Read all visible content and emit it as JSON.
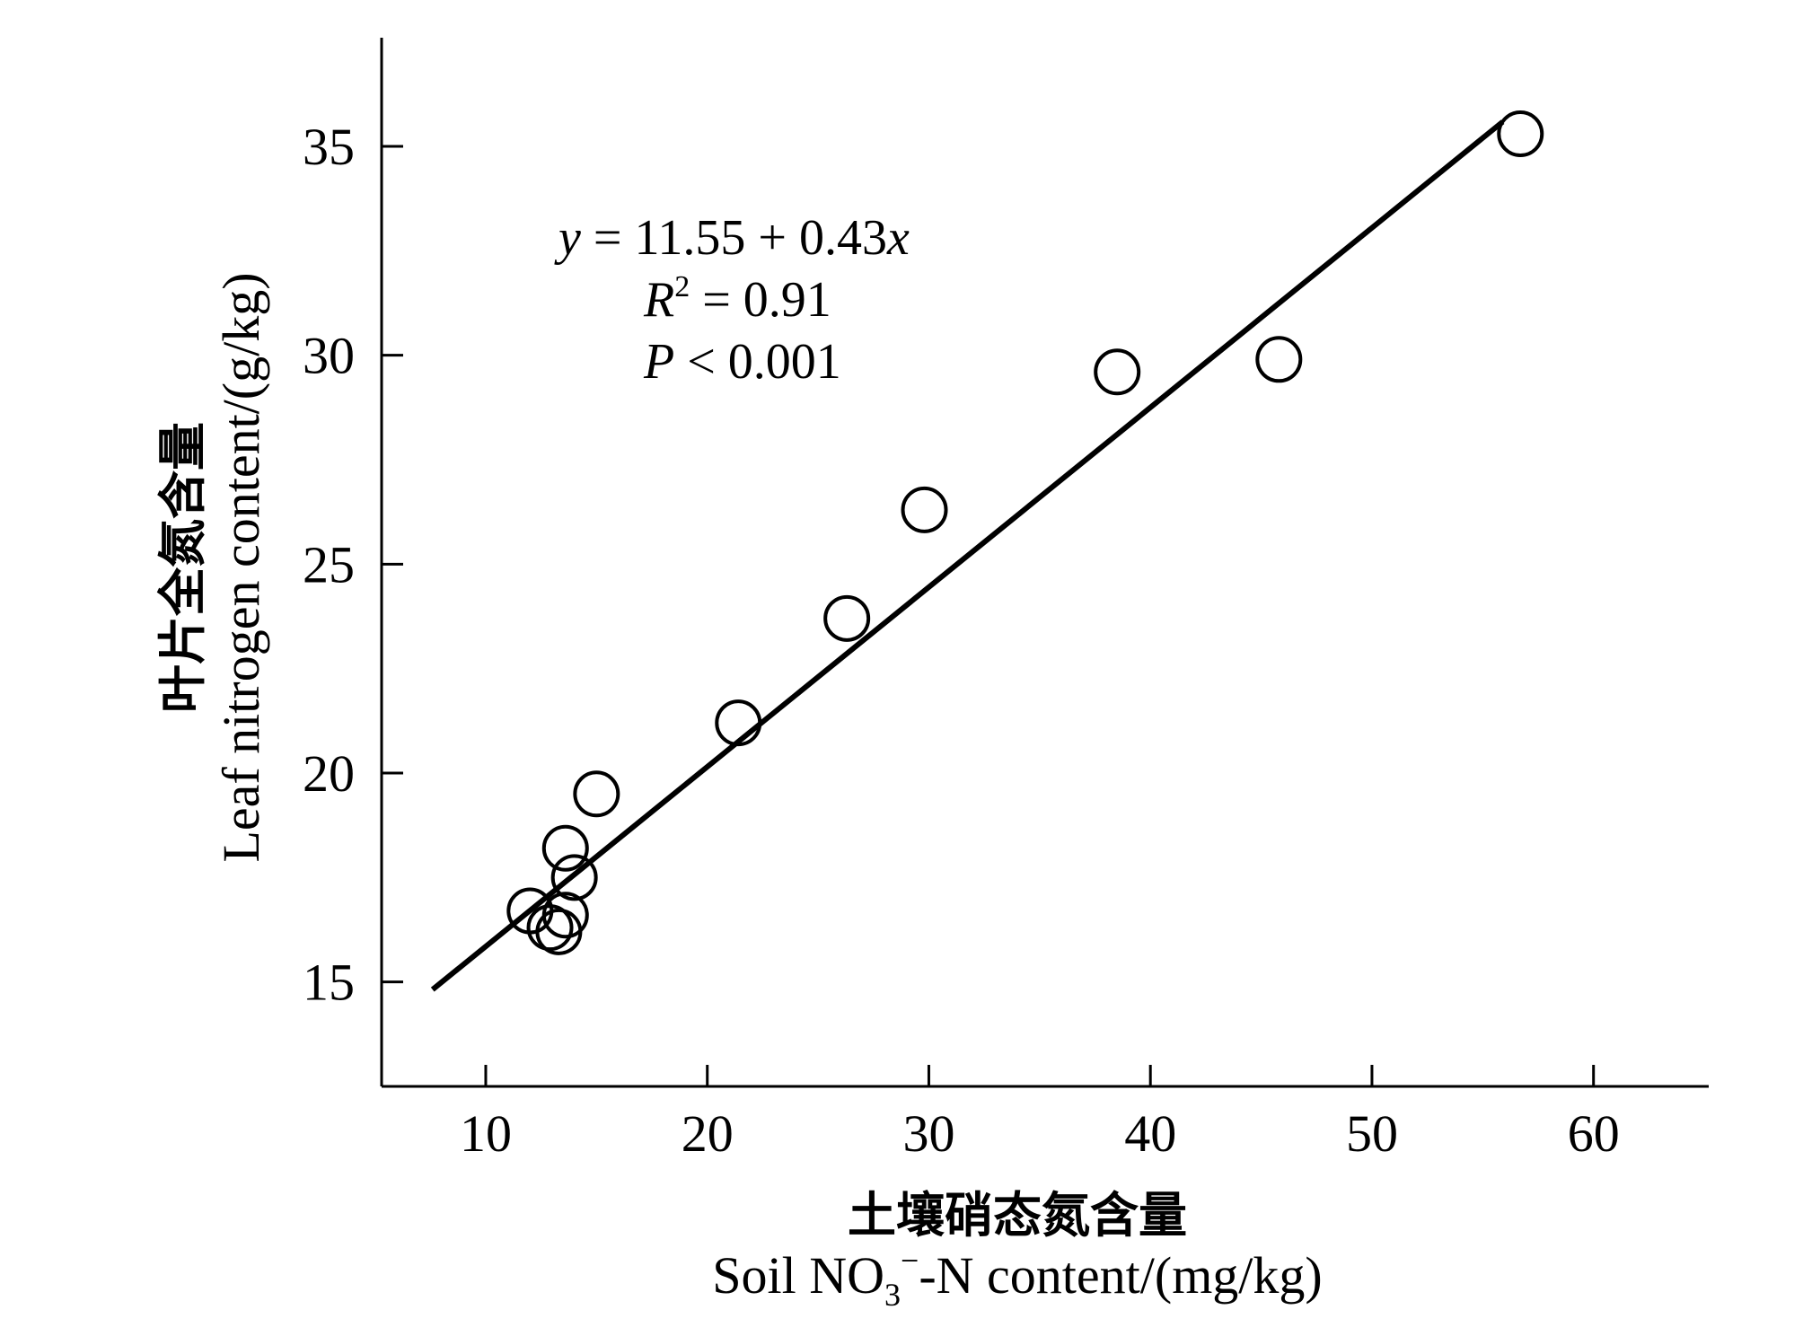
{
  "chart_data": {
    "type": "scatter",
    "xlabel_cn": "土壤硝态氮含量",
    "xlabel_en": {
      "prefix": "Soil NO",
      "sub": "3",
      "sup": "−",
      "suffix": "-N content/(mg/kg)"
    },
    "ylabel_cn": "叶片全氮含量",
    "ylabel_en": "Leaf nitrogen content/(g/kg)",
    "xlim": [
      5.3,
      65.2
    ],
    "ylim": [
      12.5,
      37.6
    ],
    "xticks": [
      10,
      20,
      30,
      40,
      50,
      60
    ],
    "yticks": [
      15,
      20,
      25,
      30,
      35
    ],
    "grid": false,
    "series": [
      {
        "marker": "open-circle",
        "points": [
          {
            "x": 12.0,
            "y": 16.7
          },
          {
            "x": 12.9,
            "y": 16.3
          },
          {
            "x": 13.3,
            "y": 16.2
          },
          {
            "x": 13.6,
            "y": 16.6
          },
          {
            "x": 13.6,
            "y": 18.2
          },
          {
            "x": 14.0,
            "y": 17.5
          },
          {
            "x": 15.0,
            "y": 19.5
          },
          {
            "x": 21.4,
            "y": 21.2
          },
          {
            "x": 26.3,
            "y": 23.7
          },
          {
            "x": 29.8,
            "y": 26.3
          },
          {
            "x": 38.5,
            "y": 29.6
          },
          {
            "x": 45.8,
            "y": 29.9
          },
          {
            "x": 56.7,
            "y": 35.3
          }
        ]
      }
    ],
    "fit_line": {
      "intercept": 11.55,
      "slope": 0.43,
      "x_start": 7.6,
      "x_end": 55.9
    },
    "annotations": {
      "equation": {
        "italic_y": "y",
        "text": " = 11.55 + 0.43",
        "italic_x": "x"
      },
      "r2": {
        "italic": "R",
        "sup": "2",
        "text": " = 0.91"
      },
      "p": {
        "italic": "P",
        "text": " < 0.001"
      }
    }
  }
}
